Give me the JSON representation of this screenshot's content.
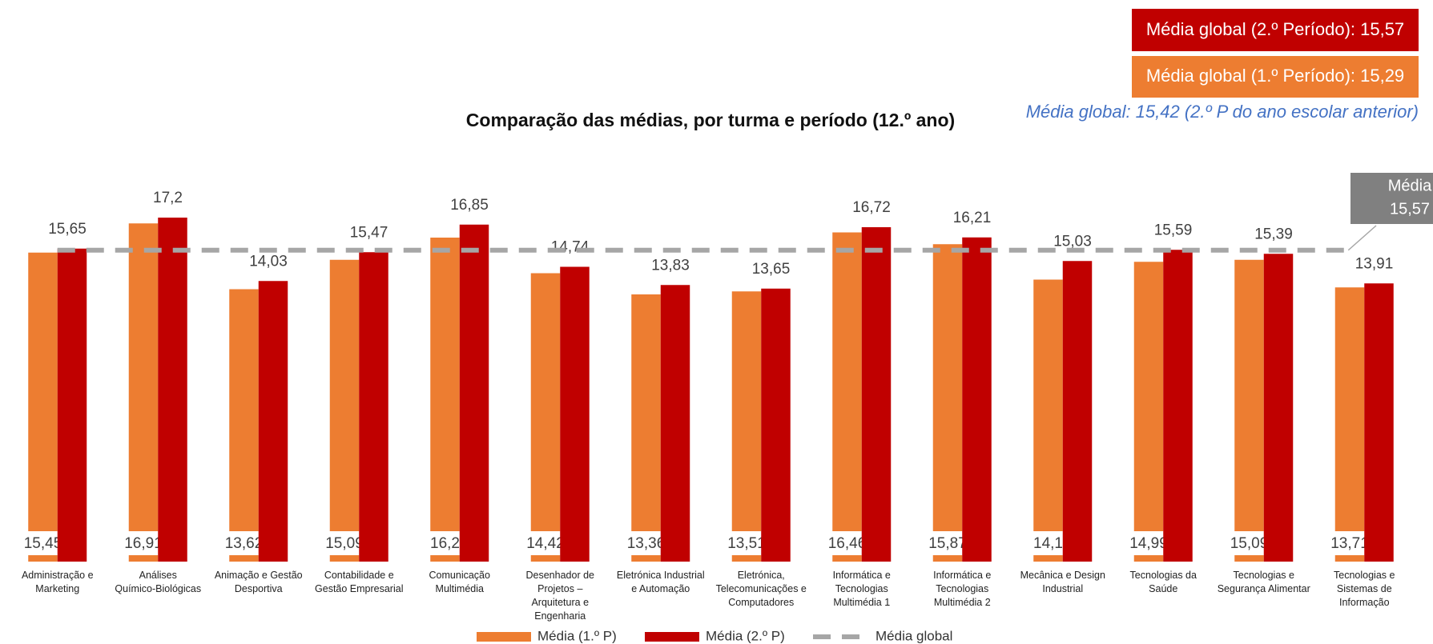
{
  "chart_data": {
    "type": "bar",
    "title": "Comparação das médias, por turma e período (12.º ano)",
    "annotations": [
      "Média global (2.º Período): 15,57",
      "Média global (1.º Período): 15,29",
      "Média global: 15,42 (2.º P do ano escolar anterior)"
    ],
    "categories": [
      "Administração e Marketing",
      "Análises Químico-Biológicas",
      "Animação e Gestão Desportiva",
      "Contabilidade e Gestão Empresarial",
      "Comunicação Multimédia",
      "Desenhador de Projetos – Arquitetura e Engenharia",
      "Eletrónica Industrial e Automação",
      "Eletrónica, Telecomunicações e Computadores",
      "Informática e Tecnologias Multimédia 1",
      "Informática e Tecnologias Multimédia 2",
      "Mecânica e Design Industrial",
      "Tecnologias da Saúde",
      "Tecnologias e Segurança Alimentar",
      "Tecnologias e Sistemas de Informação"
    ],
    "series": [
      {
        "name": "Média (1.º P)",
        "color": "#ED7D31",
        "values": [
          15.45,
          16.91,
          13.62,
          15.09,
          16.2,
          14.42,
          13.36,
          13.51,
          16.46,
          15.87,
          14.1,
          14.99,
          15.09,
          13.71
        ],
        "value_labels": [
          "15,45",
          "16,91",
          "13,62",
          "15,09",
          "16,2",
          "14,42",
          "13,36",
          "13,51",
          "16,46",
          "15,87",
          "14,1",
          "14,99",
          "15,09",
          "13,71"
        ]
      },
      {
        "name": "Média (2.º P)",
        "color": "#C00000",
        "values": [
          15.65,
          17.2,
          14.03,
          15.47,
          16.85,
          14.74,
          13.83,
          13.65,
          16.72,
          16.21,
          15.03,
          15.59,
          15.39,
          13.91
        ],
        "value_labels": [
          "15,65",
          "17,2",
          "14,03",
          "15,47",
          "16,85",
          "14,74",
          "13,83",
          "13,65",
          "16,72",
          "16,21",
          "15,03",
          "15,59",
          "15,39",
          "13,91"
        ]
      }
    ],
    "reference_line": {
      "name": "Média global",
      "color": "#A6A6A6",
      "value": 15.57,
      "label": "Média",
      "value_label": "15,57"
    },
    "ylim": [
      0,
      20
    ]
  }
}
